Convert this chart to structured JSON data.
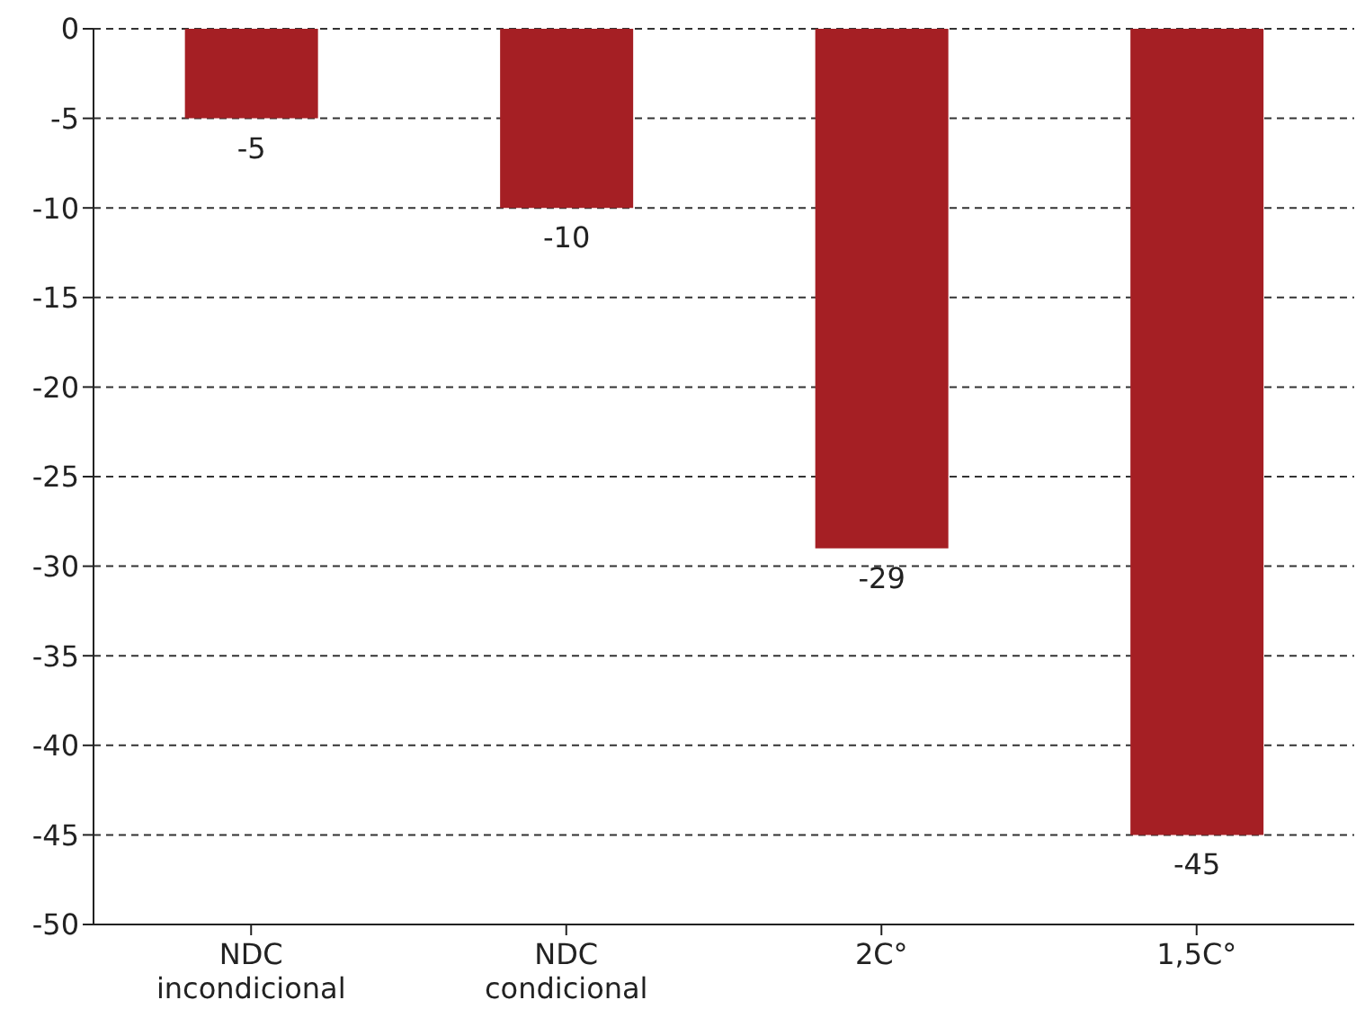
{
  "chart_data": {
    "type": "bar",
    "categories": [
      "NDC incondicional",
      "NDC condicional",
      "2C°",
      "1,5C°"
    ],
    "values": [
      -5,
      -10,
      -29,
      -45
    ],
    "color": "#a51f24",
    "ylim": [
      -50,
      0
    ],
    "yticks": [
      0,
      -5,
      -10,
      -15,
      -20,
      -25,
      -30,
      -35,
      -40,
      -45,
      -50
    ],
    "grid": "y",
    "data_labels": true
  }
}
